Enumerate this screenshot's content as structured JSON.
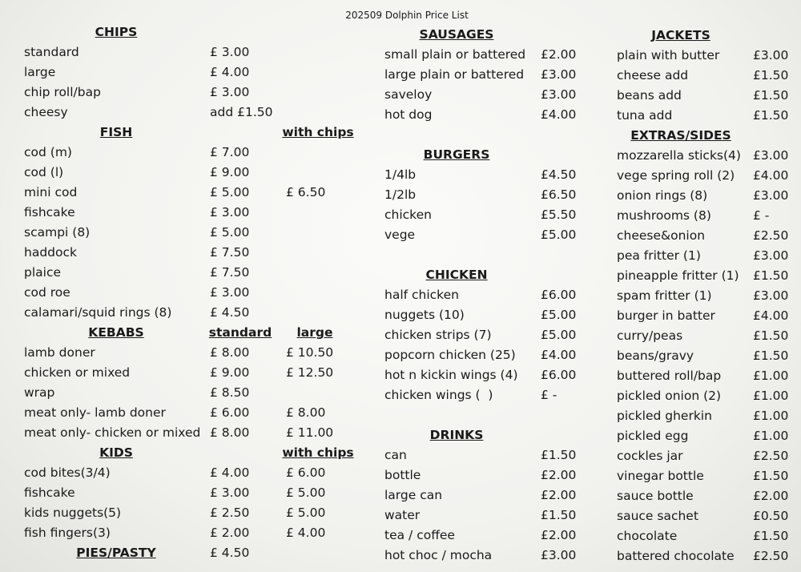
{
  "title": "202509 Dolphin Price List",
  "columns": [
    {
      "sections": [
        {
          "heading": "CHIPS",
          "items": [
            {
              "name": "standard",
              "prices": [
                "£ 3.00"
              ]
            },
            {
              "name": "large",
              "prices": [
                "£ 4.00"
              ]
            },
            {
              "name": "chip roll/bap",
              "prices": [
                "£ 3.00"
              ]
            },
            {
              "name": "cheesy",
              "prices": [
                "add £1.50"
              ]
            }
          ]
        },
        {
          "heading": "FISH",
          "subheadings": [
            "with chips"
          ],
          "items": [
            {
              "name": "cod (m)",
              "prices": [
                "£ 7.00"
              ]
            },
            {
              "name": "cod (l)",
              "prices": [
                "£ 9.00"
              ]
            },
            {
              "name": "mini cod",
              "prices": [
                "£ 5.00",
                "£ 6.50"
              ]
            },
            {
              "name": "fishcake",
              "prices": [
                "£ 3.00"
              ]
            },
            {
              "name": "scampi (8)",
              "prices": [
                "£ 5.00"
              ]
            },
            {
              "name": "haddock",
              "prices": [
                "£ 7.50"
              ]
            },
            {
              "name": "plaice",
              "prices": [
                "£ 7.50"
              ]
            },
            {
              "name": "cod roe",
              "prices": [
                "£ 3.00"
              ]
            },
            {
              "name": "calamari/squid rings (8)",
              "prices": [
                "£ 4.50"
              ]
            }
          ]
        },
        {
          "heading": "KEBABS",
          "subheadings": [
            "standard",
            "large"
          ],
          "items": [
            {
              "name": "lamb doner",
              "prices": [
                "£ 8.00",
                "£ 10.50"
              ]
            },
            {
              "name": "chicken or mixed",
              "prices": [
                "£ 9.00",
                "£ 12.50"
              ]
            },
            {
              "name": "wrap",
              "prices": [
                "£ 8.50"
              ]
            },
            {
              "name": "meat only- lamb doner",
              "prices": [
                "£ 6.00",
                "£ 8.00"
              ]
            },
            {
              "name": "meat only- chicken or mixed",
              "prices": [
                "£ 8.00",
                "£ 11.00"
              ]
            }
          ]
        },
        {
          "heading": "KIDS",
          "subheadings": [
            "with chips"
          ],
          "items": [
            {
              "name": "cod bites(3/4)",
              "prices": [
                "£ 4.00",
                "£ 6.00"
              ]
            },
            {
              "name": "fishcake",
              "prices": [
                "£ 3.00",
                "£ 5.00"
              ]
            },
            {
              "name": "kids nuggets(5)",
              "prices": [
                "£ 2.50",
                "£ 5.00"
              ]
            },
            {
              "name": "fish fingers(3)",
              "prices": [
                "£ 2.00",
                "£ 4.00"
              ]
            }
          ]
        },
        {
          "heading": "PIES/PASTY",
          "prices": [
            "£ 4.50"
          ]
        }
      ]
    },
    {
      "sections": [
        {
          "heading": "SAUSAGES",
          "items": [
            {
              "name": "small plain or battered",
              "prices": [
                "£2.00"
              ]
            },
            {
              "name": "large plain or battered",
              "prices": [
                "£3.00"
              ]
            },
            {
              "name": "saveloy",
              "prices": [
                "£3.00"
              ]
            },
            {
              "name": "hot dog",
              "prices": [
                "£4.00"
              ]
            }
          ]
        },
        {
          "heading": "BURGERS",
          "items": [
            {
              "name": "1/4lb",
              "prices": [
                "£4.50"
              ]
            },
            {
              "name": "1/2lb",
              "prices": [
                "£6.50"
              ]
            },
            {
              "name": "chicken",
              "prices": [
                "£5.50"
              ]
            },
            {
              "name": "vege",
              "prices": [
                "£5.00"
              ]
            }
          ]
        },
        {
          "heading": "CHICKEN",
          "items": [
            {
              "name": "half chicken",
              "prices": [
                "£6.00"
              ]
            },
            {
              "name": "nuggets (10)",
              "prices": [
                "£5.00"
              ]
            },
            {
              "name": "chicken strips (7)",
              "prices": [
                "£5.00"
              ]
            },
            {
              "name": "popcorn chicken (25)",
              "prices": [
                "£4.00"
              ]
            },
            {
              "name": "hot n kickin wings (4)",
              "prices": [
                "£6.00"
              ]
            },
            {
              "name": "chicken wings (  )",
              "prices": [
                "£ -"
              ]
            }
          ]
        },
        {
          "heading": "DRINKS",
          "items": [
            {
              "name": "can",
              "prices": [
                "£1.50"
              ]
            },
            {
              "name": "bottle",
              "prices": [
                "£2.00"
              ]
            },
            {
              "name": "large can",
              "prices": [
                "£2.00"
              ]
            },
            {
              "name": "water",
              "prices": [
                "£1.50"
              ]
            },
            {
              "name": "tea / coffee",
              "prices": [
                "£2.00"
              ]
            },
            {
              "name": "hot choc / mocha",
              "prices": [
                "£3.00"
              ]
            }
          ]
        }
      ]
    },
    {
      "sections": [
        {
          "heading": "JACKETS",
          "items": [
            {
              "name": "plain with butter",
              "prices": [
                "£3.00"
              ]
            },
            {
              "name": "cheese add",
              "prices": [
                "£1.50"
              ]
            },
            {
              "name": "beans add",
              "prices": [
                "£1.50"
              ]
            },
            {
              "name": "tuna add",
              "prices": [
                "£1.50"
              ]
            }
          ]
        },
        {
          "heading": "EXTRAS/SIDES",
          "items": [
            {
              "name": "mozzarella sticks(4)",
              "prices": [
                "£3.00"
              ]
            },
            {
              "name": "vege spring roll (2)",
              "prices": [
                "£4.00"
              ]
            },
            {
              "name": "onion rings (8)",
              "prices": [
                "£3.00"
              ]
            },
            {
              "name": "mushrooms (8)",
              "prices": [
                "£ -"
              ]
            },
            {
              "name": "cheese&onion",
              "prices": [
                "£2.50"
              ]
            },
            {
              "name": "pea fritter (1)",
              "prices": [
                "£3.00"
              ]
            },
            {
              "name": "pineapple fritter (1)",
              "prices": [
                "£1.50"
              ]
            },
            {
              "name": "spam fritter (1)",
              "prices": [
                "£3.00"
              ]
            },
            {
              "name": "burger in batter",
              "prices": [
                "£4.00"
              ]
            },
            {
              "name": "curry/peas",
              "prices": [
                "£1.50"
              ]
            },
            {
              "name": "beans/gravy",
              "prices": [
                "£1.50"
              ]
            },
            {
              "name": "buttered roll/bap",
              "prices": [
                "£1.00"
              ]
            },
            {
              "name": "pickled onion (2)",
              "prices": [
                "£1.00"
              ]
            },
            {
              "name": "pickled gherkin",
              "prices": [
                "£1.00"
              ]
            },
            {
              "name": "pickled egg",
              "prices": [
                "£1.00"
              ]
            },
            {
              "name": "cockles jar",
              "prices": [
                "£2.50"
              ]
            },
            {
              "name": "vinegar bottle",
              "prices": [
                "£1.50"
              ]
            },
            {
              "name": "sauce bottle",
              "prices": [
                "£2.00"
              ]
            },
            {
              "name": "sauce sachet",
              "prices": [
                "£0.50"
              ]
            },
            {
              "name": "chocolate",
              "prices": [
                "£1.50"
              ]
            },
            {
              "name": "battered chocolate",
              "prices": [
                "£2.50"
              ]
            }
          ]
        }
      ]
    }
  ]
}
